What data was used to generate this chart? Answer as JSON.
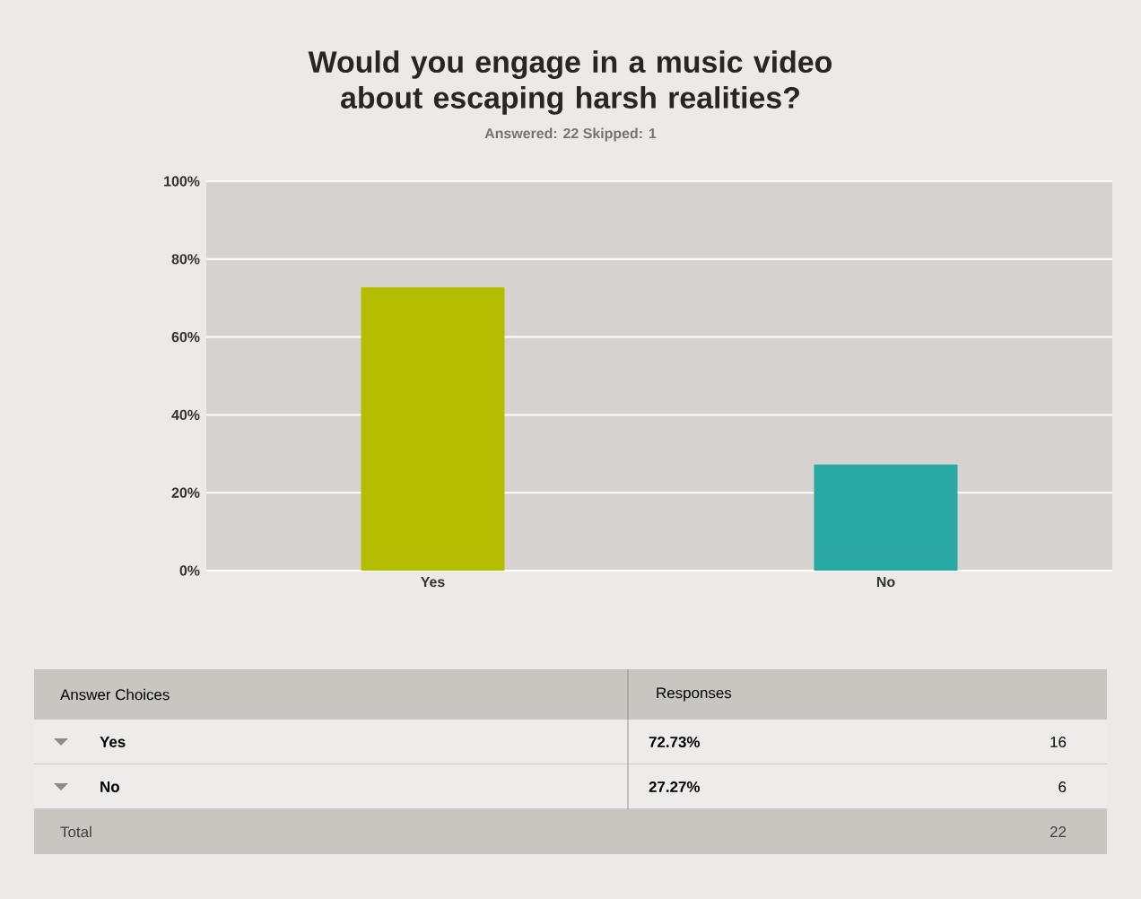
{
  "chart_data": {
    "type": "bar",
    "title": "Would you engage in a music video about escaping harsh realities?",
    "subtitle": "Answered: 22     Skipped: 1",
    "categories": [
      "Yes",
      "No"
    ],
    "values": [
      72.73,
      27.27
    ],
    "colors": [
      "#b5bd00",
      "#2aa8a3"
    ],
    "ylim": [
      0,
      100
    ],
    "yticks": [
      {
        "value": 0,
        "label": "0%"
      },
      {
        "value": 20,
        "label": "20%"
      },
      {
        "value": 40,
        "label": "40%"
      },
      {
        "value": 60,
        "label": "60%"
      },
      {
        "value": 80,
        "label": "80%"
      },
      {
        "value": 100,
        "label": "100%"
      }
    ],
    "grid": "y",
    "annotations": [
      "Answer Choices",
      "Responses",
      "72.73%",
      "16",
      "27.27%",
      "6",
      "Total",
      "22"
    ]
  }
}
